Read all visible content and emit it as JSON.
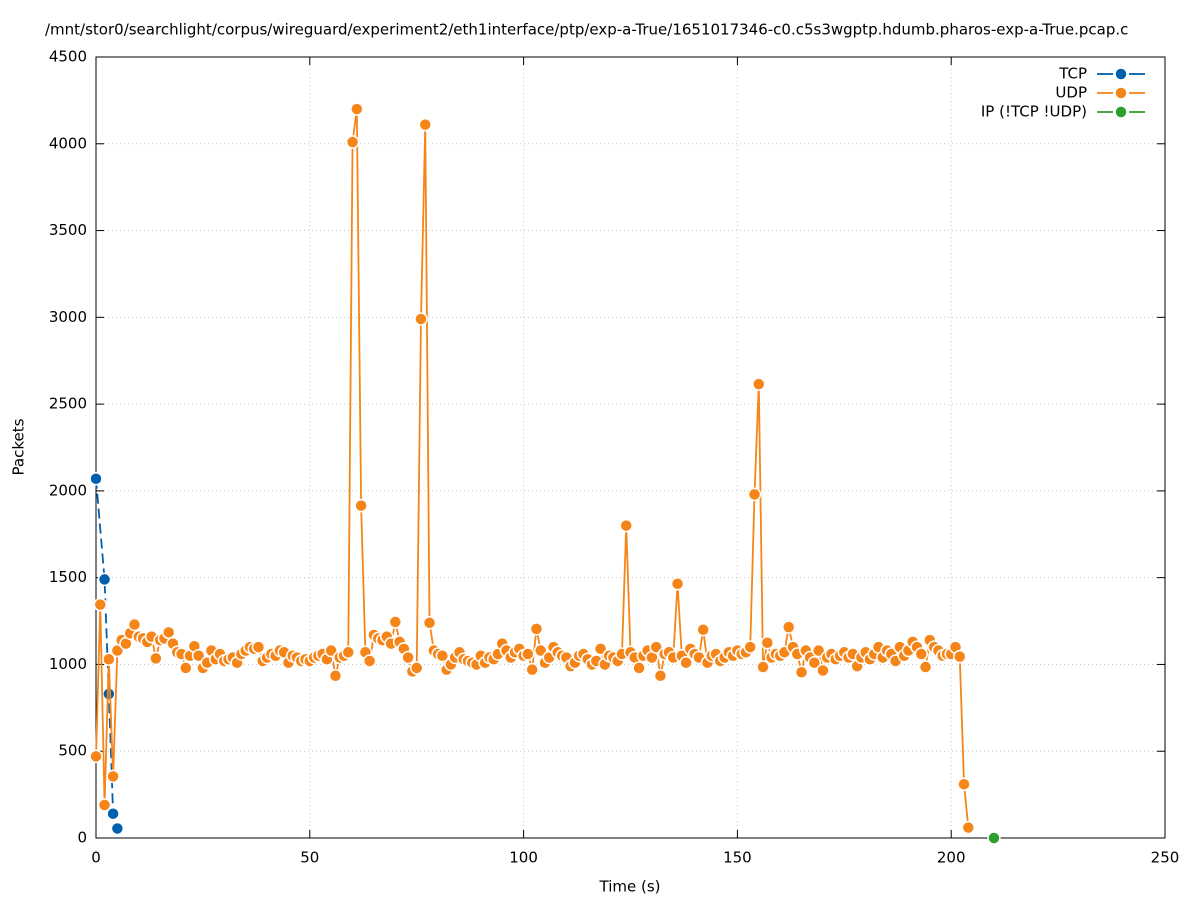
{
  "chart_data": {
    "type": "line",
    "title": "/mnt/stor0/searchlight/corpus/wireguard/experiment2/eth1interface/ptp/exp-a-True/1651017346-c0.c5s3wgptp.hdumb.pharos-exp-a-True.pcap.c",
    "x_label": "Time (s)",
    "y_label": "Packets",
    "xlim": [
      0,
      250
    ],
    "xticks": [
      0,
      50,
      100,
      150,
      200,
      250
    ],
    "ylim": [
      0,
      4500
    ],
    "yticks": [
      0,
      500,
      1000,
      1500,
      2000,
      2500,
      3000,
      3500,
      4000,
      4500
    ],
    "grid": true,
    "legend": "top-right",
    "series": [
      {
        "name": "TCP",
        "color": "#0060ad",
        "dashed": true,
        "x": [
          0,
          2,
          3,
          4,
          5
        ],
        "values": [
          2070,
          1490,
          830,
          140,
          55
        ]
      },
      {
        "name": "UDP",
        "color": "#f58518",
        "x": [
          0,
          1,
          2,
          3,
          4,
          5,
          6,
          7,
          8,
          9,
          10,
          11,
          12,
          13,
          14,
          15,
          16,
          17,
          18,
          19,
          20,
          21,
          22,
          23,
          24,
          25,
          26,
          27,
          28,
          29,
          30,
          31,
          32,
          33,
          34,
          35,
          36,
          37,
          38,
          39,
          40,
          41,
          42,
          43,
          44,
          45,
          46,
          47,
          48,
          49,
          50,
          51,
          52,
          53,
          54,
          55,
          56,
          57,
          58,
          59,
          60,
          61,
          62,
          63,
          64,
          65,
          66,
          67,
          68,
          69,
          70,
          71,
          72,
          73,
          74,
          75,
          76,
          77,
          78,
          79,
          80,
          81,
          82,
          83,
          84,
          85,
          86,
          87,
          88,
          89,
          90,
          91,
          92,
          93,
          94,
          95,
          96,
          97,
          98,
          99,
          100,
          101,
          102,
          103,
          104,
          105,
          106,
          107,
          108,
          109,
          110,
          111,
          112,
          113,
          114,
          115,
          116,
          117,
          118,
          119,
          120,
          121,
          122,
          123,
          124,
          125,
          126,
          127,
          128,
          129,
          130,
          131,
          132,
          133,
          134,
          135,
          136,
          137,
          138,
          139,
          140,
          141,
          142,
          143,
          144,
          145,
          146,
          147,
          148,
          149,
          150,
          151,
          152,
          153,
          154,
          155,
          156,
          157,
          158,
          159,
          160,
          161,
          162,
          163,
          164,
          165,
          166,
          167,
          168,
          169,
          170,
          171,
          172,
          173,
          174,
          175,
          176,
          177,
          178,
          179,
          180,
          181,
          182,
          183,
          184,
          185,
          186,
          187,
          188,
          189,
          190,
          191,
          192,
          193,
          194,
          195,
          196,
          197,
          198,
          199,
          200,
          201,
          202,
          203,
          204
        ],
        "values": [
          470,
          1345,
          190,
          1030,
          355,
          1080,
          1140,
          1120,
          1180,
          1230,
          1160,
          1150,
          1130,
          1160,
          1035,
          1140,
          1150,
          1185,
          1120,
          1070,
          1060,
          980,
          1050,
          1105,
          1050,
          980,
          1010,
          1080,
          1030,
          1060,
          1020,
          1030,
          1040,
          1010,
          1060,
          1080,
          1100,
          1090,
          1100,
          1020,
          1040,
          1060,
          1050,
          1080,
          1070,
          1010,
          1050,
          1040,
          1020,
          1030,
          1020,
          1040,
          1050,
          1060,
          1030,
          1080,
          935,
          1040,
          1050,
          1070,
          4010,
          4200,
          1915,
          1070,
          1020,
          1170,
          1150,
          1140,
          1160,
          1120,
          1245,
          1130,
          1090,
          1040,
          960,
          980,
          2990,
          4110,
          1240,
          1080,
          1060,
          1050,
          970,
          1000,
          1040,
          1070,
          1030,
          1020,
          1010,
          1000,
          1050,
          1010,
          1040,
          1030,
          1060,
          1120,
          1080,
          1040,
          1070,
          1090,
          1050,
          1060,
          970,
          1205,
          1080,
          1010,
          1040,
          1100,
          1070,
          1050,
          1040,
          990,
          1010,
          1050,
          1060,
          1030,
          1000,
          1020,
          1090,
          1000,
          1050,
          1040,
          1020,
          1060,
          1800,
          1070,
          1040,
          980,
          1050,
          1080,
          1040,
          1100,
          935,
          1060,
          1070,
          1040,
          1465,
          1050,
          1010,
          1090,
          1060,
          1040,
          1200,
          1010,
          1050,
          1060,
          1020,
          1040,
          1070,
          1050,
          1080,
          1060,
          1070,
          1100,
          1980,
          2615,
          985,
          1125,
          1040,
          1060,
          1050,
          1070,
          1215,
          1100,
          1060,
          955,
          1080,
          1040,
          1010,
          1080,
          965,
          1040,
          1060,
          1030,
          1050,
          1070,
          1040,
          1060,
          990,
          1040,
          1070,
          1030,
          1060,
          1100,
          1040,
          1080,
          1060,
          1020,
          1100,
          1050,
          1080,
          1130,
          1100,
          1060,
          985,
          1140,
          1100,
          1080,
          1050,
          1060,
          1060,
          1100,
          1045,
          310,
          60
        ]
      },
      {
        "name": "IP (!TCP  !UDP)",
        "color": "#2ca02c",
        "x": [
          210
        ],
        "values": [
          0
        ]
      }
    ]
  }
}
